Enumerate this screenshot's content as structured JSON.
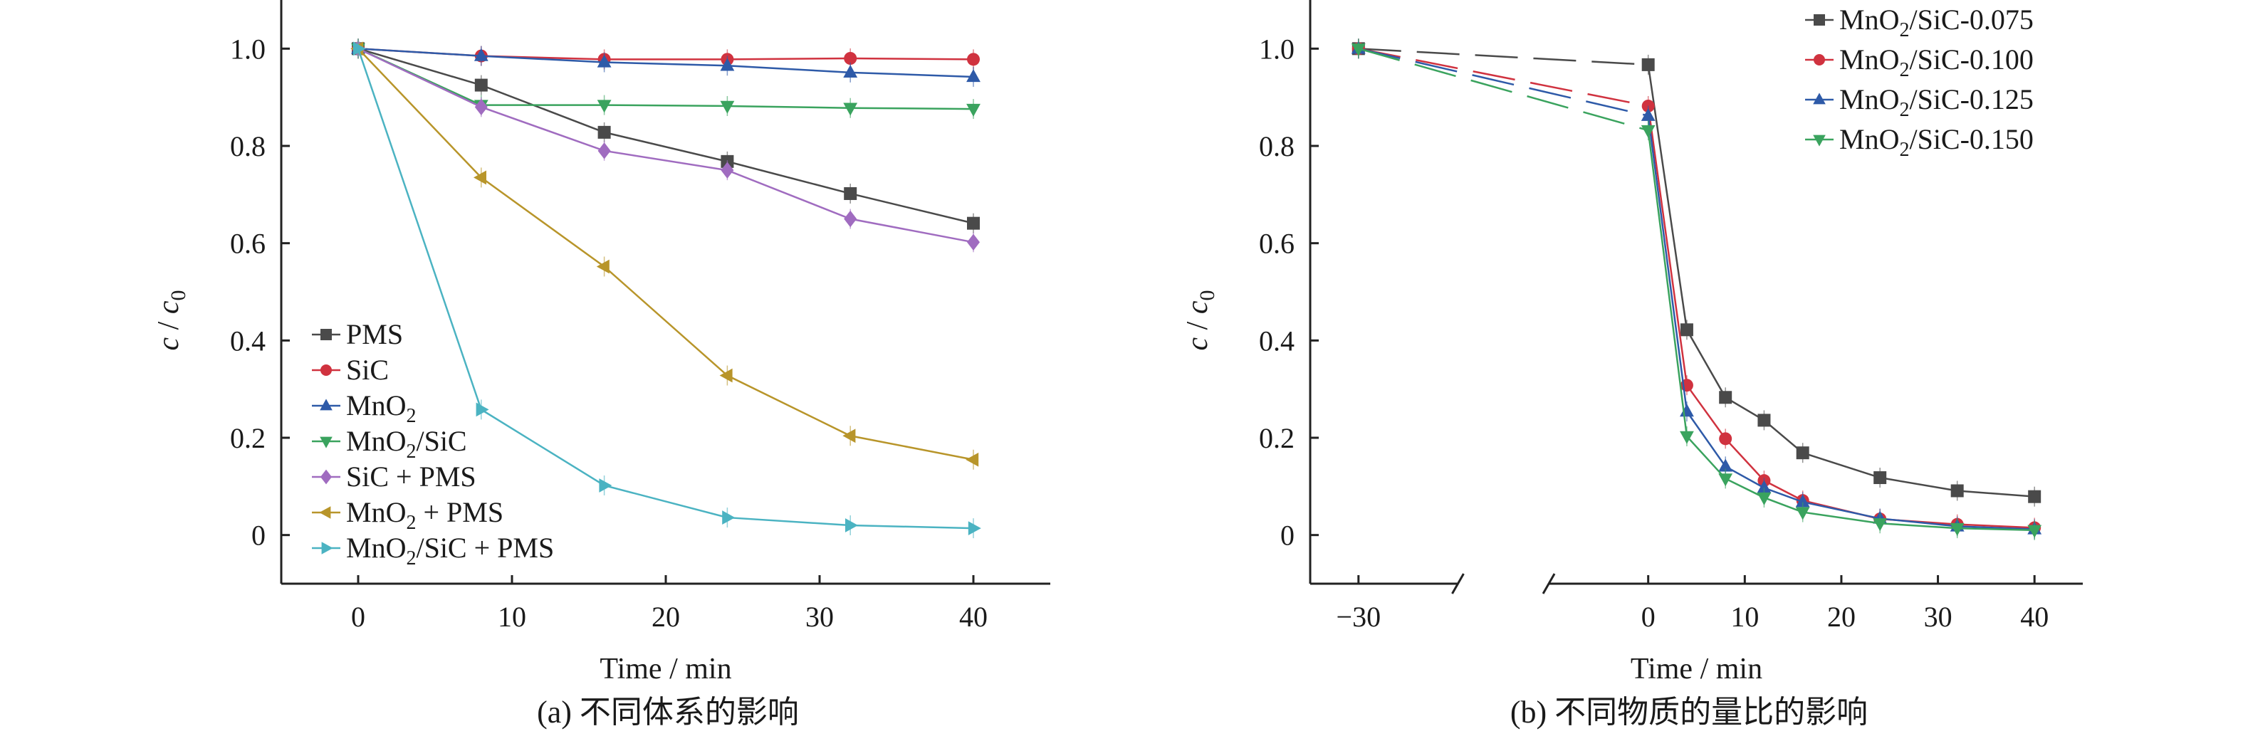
{
  "captions": {
    "left": "(a) 不同体系的影响",
    "right": "(b) 不同物质的量比的影响"
  },
  "chart_data": [
    {
      "type": "line",
      "panel": "a",
      "title": "(a) 不同体系的影响",
      "xlabel": "Time / min",
      "ylabel": "c / c0",
      "ylabel_parts": {
        "main": "c",
        "sep": " / ",
        "sym": "c",
        "sub": "0"
      },
      "xlim": [
        -5,
        45
      ],
      "ylim": [
        -0.1,
        1.1
      ],
      "xticks": [
        0,
        10,
        20,
        30,
        40
      ],
      "xtick_labels": [
        "0",
        "10",
        "20",
        "30",
        "40"
      ],
      "yticks": [
        0,
        0.2,
        0.4,
        0.6,
        0.8,
        1.0
      ],
      "ytick_labels": [
        "0",
        "0.2",
        "0.4",
        "0.6",
        "0.8",
        "1.0"
      ],
      "grid": false,
      "legend_position": "bottom-left",
      "x": [
        0,
        8,
        16,
        24,
        32,
        40
      ],
      "series": [
        {
          "name": "PMS",
          "label_main": "PMS",
          "label_sub": "",
          "label_rest": "",
          "marker": "square",
          "color": "#4a4a4a",
          "values": [
            1.0,
            0.925,
            0.828,
            0.768,
            0.702,
            0.641
          ]
        },
        {
          "name": "SiC",
          "label_main": "SiC",
          "label_sub": "",
          "label_rest": "",
          "marker": "circle",
          "color": "#d0323f",
          "values": [
            1.0,
            0.985,
            0.978,
            0.978,
            0.98,
            0.978
          ]
        },
        {
          "name": "MnO2",
          "label_main": "MnO",
          "label_sub": "2",
          "label_rest": "",
          "marker": "triangle-up",
          "color": "#2e5aa8",
          "values": [
            1.0,
            0.985,
            0.972,
            0.965,
            0.951,
            0.942
          ]
        },
        {
          "name": "MnO2/SiC",
          "label_main": "MnO",
          "label_sub": "2",
          "label_rest": "/SiC",
          "marker": "triangle-down",
          "color": "#3aa35e",
          "values": [
            1.0,
            0.884,
            0.884,
            0.882,
            0.878,
            0.876
          ]
        },
        {
          "name": "SiC + PMS",
          "label_main": "SiC + PMS",
          "label_sub": "",
          "label_rest": "",
          "marker": "diamond",
          "color": "#a06cc0",
          "values": [
            1.0,
            0.88,
            0.79,
            0.75,
            0.65,
            0.602
          ]
        },
        {
          "name": "MnO2 + PMS",
          "label_main": "MnO",
          "label_sub": "2",
          "label_rest": " + PMS",
          "marker": "triangle-left",
          "color": "#b8952a",
          "values": [
            1.0,
            0.735,
            0.552,
            0.328,
            0.204,
            0.155
          ]
        },
        {
          "name": "MnO2/SiC + PMS",
          "label_main": "MnO",
          "label_sub": "2",
          "label_rest": "/SiC + PMS",
          "marker": "triangle-right",
          "color": "#4bb3c2",
          "values": [
            1.0,
            0.258,
            0.102,
            0.036,
            0.02,
            0.014
          ]
        }
      ]
    },
    {
      "type": "line",
      "panel": "b",
      "title": "(b) 不同物质的量比的影响",
      "xlabel": "Time / min",
      "ylabel": "c / c0",
      "ylabel_parts": {
        "main": "c",
        "sep": " / ",
        "sym": "c",
        "sub": "0"
      },
      "xlim": [
        -35,
        45
      ],
      "ylim": [
        -0.1,
        1.1
      ],
      "x_axis_break": [
        -20,
        -10
      ],
      "xticks": [
        -30,
        0,
        10,
        20,
        30,
        40
      ],
      "xtick_labels": [
        "−30",
        "0",
        "10",
        "20",
        "30",
        "40"
      ],
      "yticks": [
        0,
        0.2,
        0.4,
        0.6,
        0.8,
        1.0
      ],
      "ytick_labels": [
        "0",
        "0.2",
        "0.4",
        "0.6",
        "0.8",
        "1.0"
      ],
      "grid": false,
      "legend_position": "top-right",
      "x": [
        -30,
        0,
        4,
        8,
        12,
        16,
        24,
        32,
        40
      ],
      "series": [
        {
          "name": "MnO2/SiC-0.075",
          "label_main": "MnO",
          "label_sub": "2",
          "label_rest": "/SiC-0.075",
          "marker": "square",
          "color": "#4a4a4a",
          "values": [
            1.0,
            0.967,
            0.422,
            0.283,
            0.236,
            0.169,
            0.118,
            0.091,
            0.079
          ]
        },
        {
          "name": "MnO2/SiC-0.100",
          "label_main": "MnO",
          "label_sub": "2",
          "label_rest": "/SiC-0.100",
          "marker": "circle",
          "color": "#d0323f",
          "values": [
            1.0,
            0.882,
            0.308,
            0.198,
            0.112,
            0.071,
            0.033,
            0.022,
            0.015
          ]
        },
        {
          "name": "MnO2/SiC-0.125",
          "label_main": "MnO",
          "label_sub": "2",
          "label_rest": "/SiC-0.125",
          "marker": "triangle-up",
          "color": "#2e5aa8",
          "values": [
            1.0,
            0.862,
            0.254,
            0.141,
            0.097,
            0.068,
            0.034,
            0.018,
            0.012
          ]
        },
        {
          "name": "MnO2/SiC-0.150",
          "label_main": "MnO",
          "label_sub": "2",
          "label_rest": "/SiC-0.150",
          "marker": "triangle-down",
          "color": "#3aa35e",
          "values": [
            1.0,
            0.832,
            0.203,
            0.116,
            0.077,
            0.047,
            0.024,
            0.014,
            0.01
          ]
        }
      ]
    }
  ]
}
